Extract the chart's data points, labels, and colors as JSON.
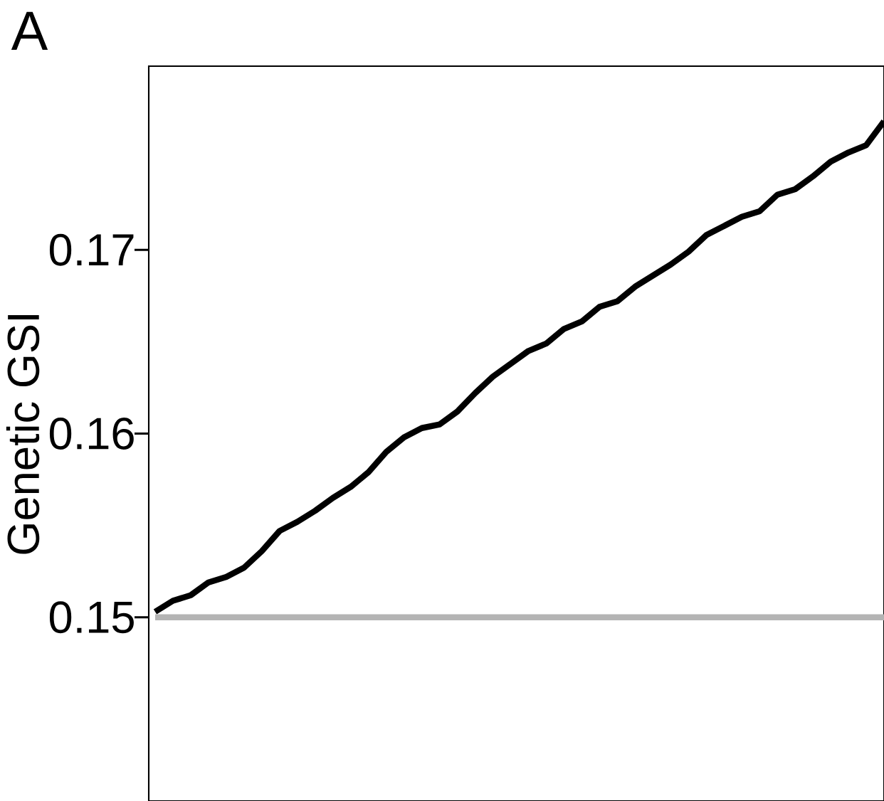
{
  "chart_data": {
    "type": "line",
    "annotations": [
      "A"
    ],
    "ylabel": "Genetic GSI",
    "categories": [
      null,
      null,
      null,
      null,
      null,
      null,
      null,
      null,
      null,
      null,
      null,
      null,
      null,
      null,
      null,
      null,
      null,
      null,
      null,
      null,
      null,
      null,
      null,
      null,
      null,
      null,
      null,
      null,
      null,
      null,
      null,
      null,
      null,
      null,
      null,
      null,
      null,
      null,
      null,
      null,
      null,
      null
    ],
    "series": [
      {
        "color": "#000000",
        "values": [
          0.1503,
          0.1509,
          0.1512,
          0.1519,
          0.1522,
          0.1527,
          0.1536,
          0.1547,
          0.1552,
          0.1558,
          0.1565,
          0.1571,
          0.1579,
          0.159,
          0.1598,
          0.1603,
          0.1605,
          0.1612,
          0.1622,
          0.1631,
          0.1638,
          0.1645,
          0.1649,
          0.1657,
          0.1661,
          0.1669,
          0.1672,
          0.168,
          0.1686,
          0.1692,
          0.1699,
          0.1708,
          0.1713,
          0.1718,
          0.1721,
          0.173,
          0.1733,
          0.174,
          0.1748,
          0.1753,
          0.1757,
          0.177
        ]
      },
      {
        "color": "#b4b4b4",
        "values": [
          0.15,
          0.15,
          0.15,
          0.15,
          0.15,
          0.15,
          0.15,
          0.15,
          0.15,
          0.15,
          0.15,
          0.15,
          0.15,
          0.15,
          0.15,
          0.15,
          0.15,
          0.15,
          0.15,
          0.15,
          0.15,
          0.15,
          0.15,
          0.15,
          0.15,
          0.15,
          0.15,
          0.15,
          0.15,
          0.15,
          0.15,
          0.15,
          0.15,
          0.15,
          0.15,
          0.15,
          0.15,
          0.15,
          0.15,
          0.15,
          0.15,
          0.15
        ]
      }
    ],
    "ylim": [
      0.14,
      0.18
    ],
    "yticks": [
      0.15,
      0.16,
      0.17
    ],
    "grid": false,
    "marker": "none",
    "line_style": "solid"
  }
}
